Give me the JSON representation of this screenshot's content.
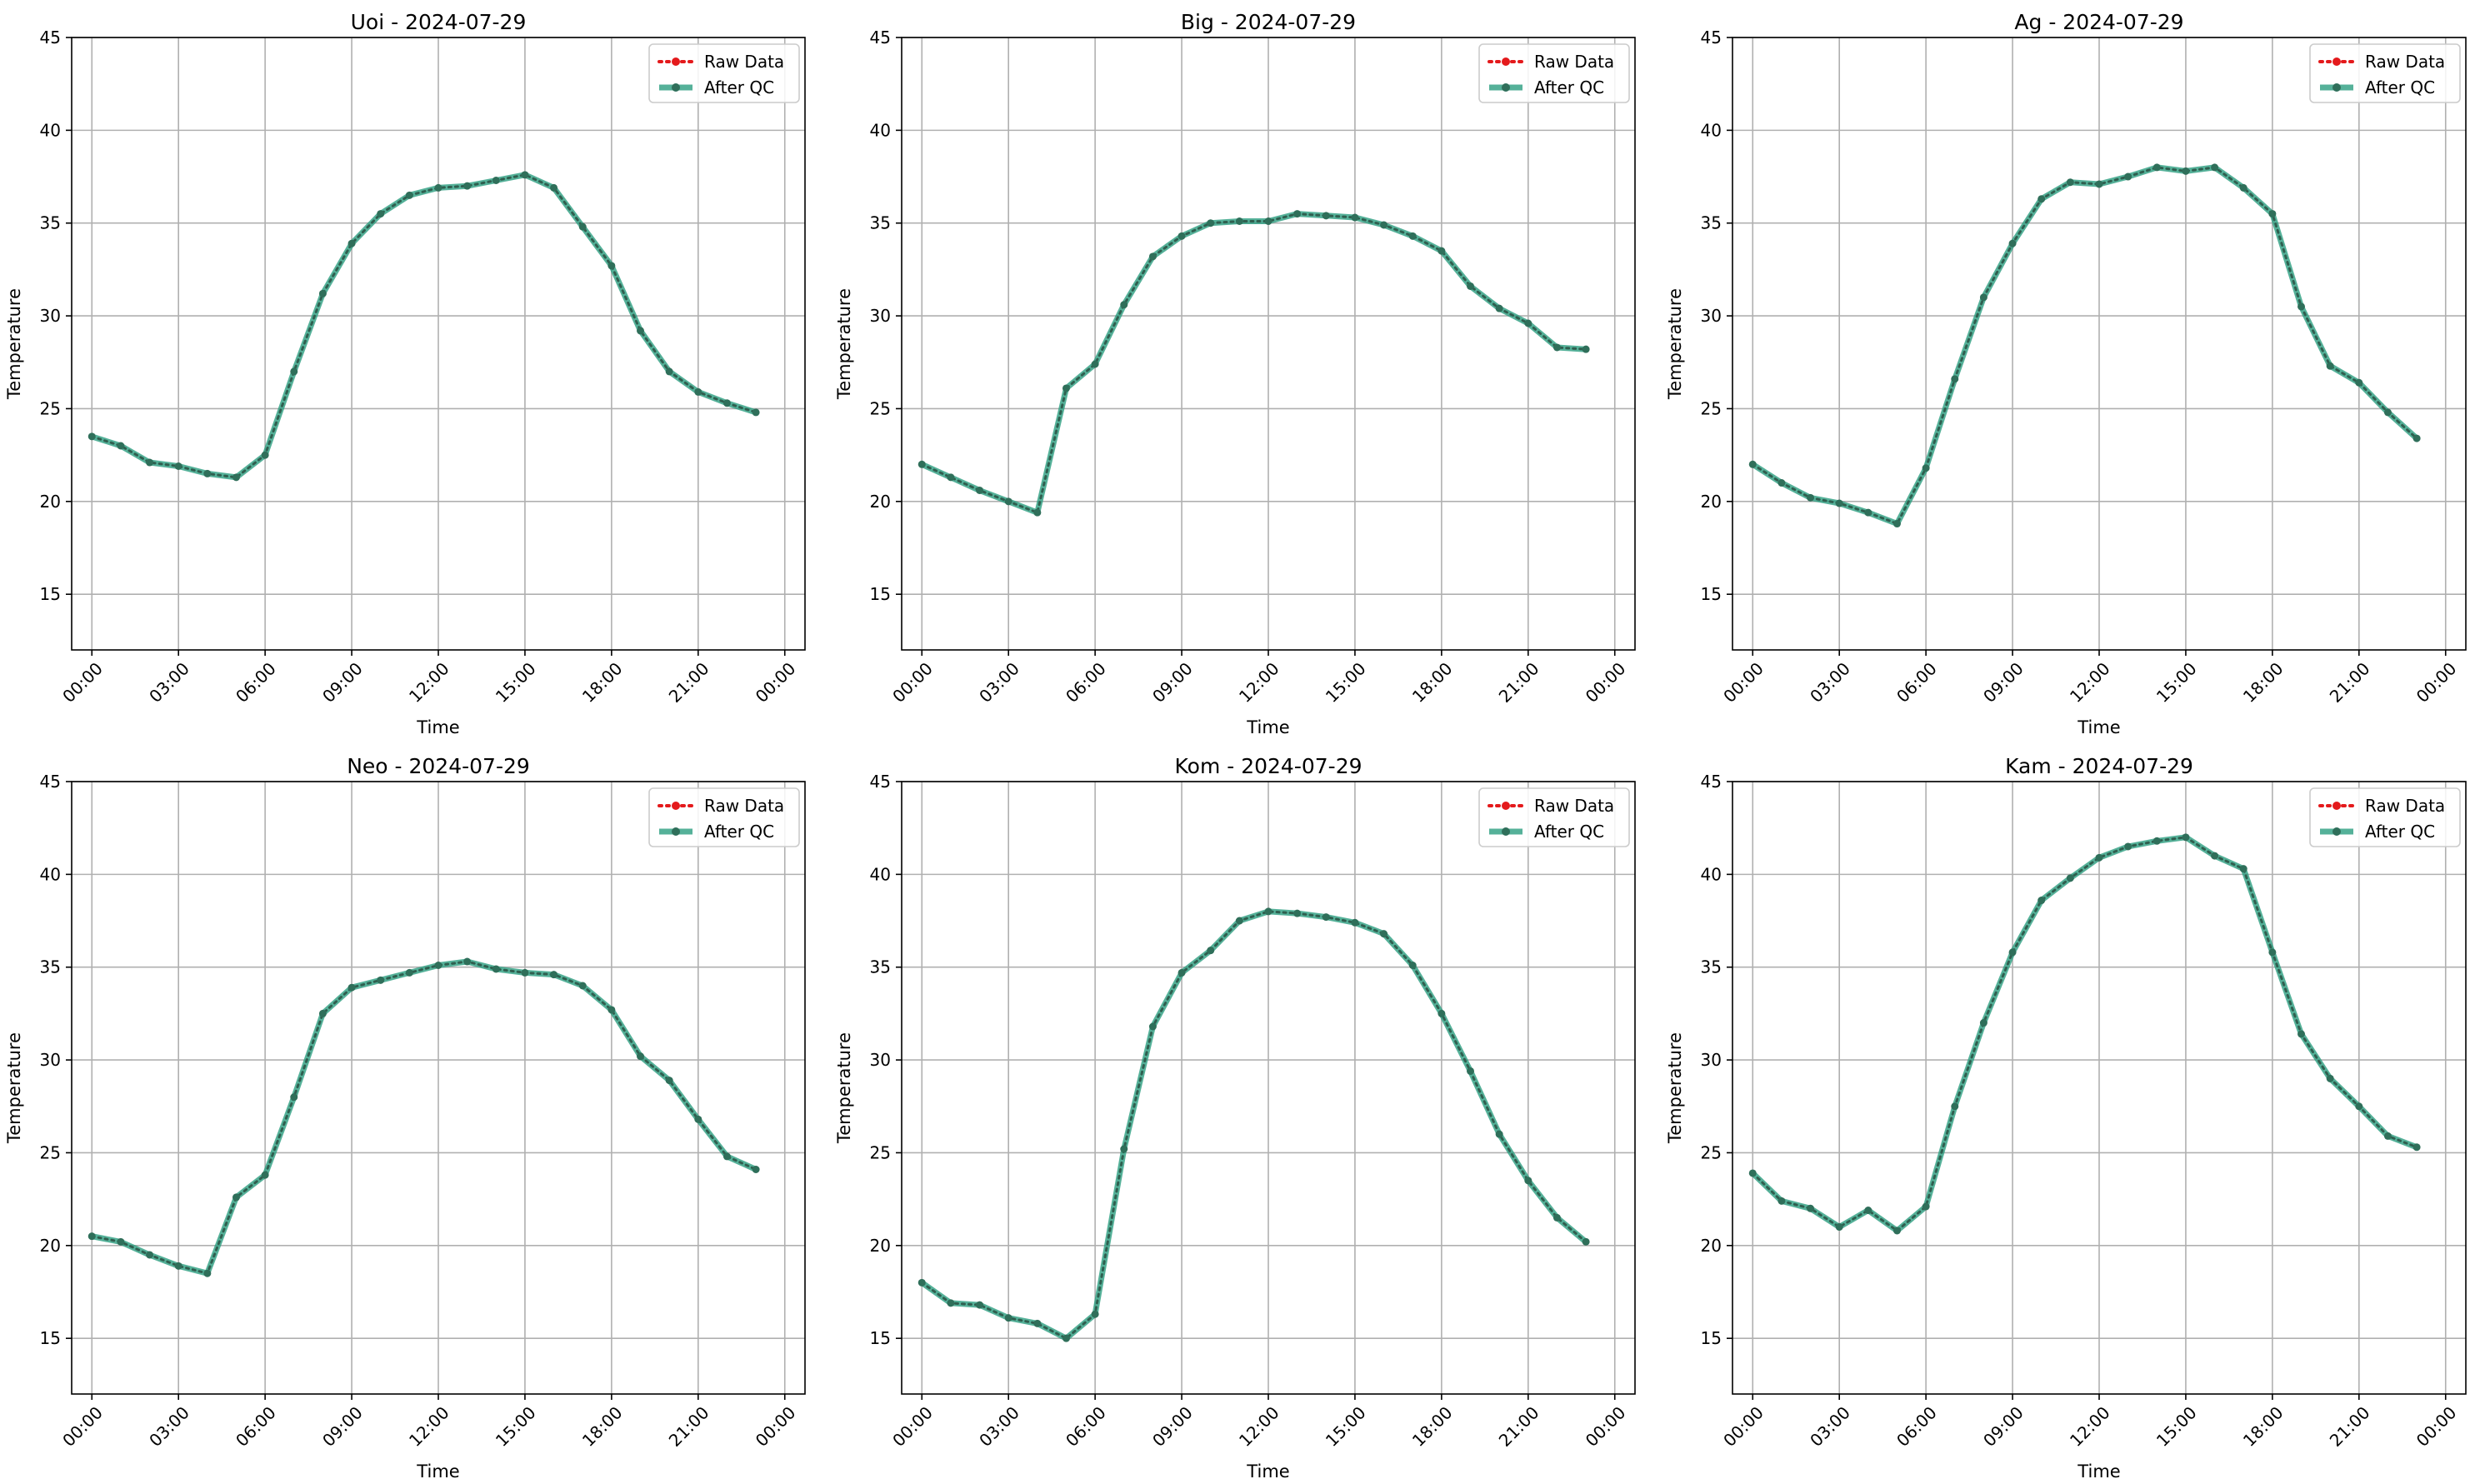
{
  "chart_data": [
    {
      "type": "line",
      "title": "Uoi - 2024-07-29",
      "xlabel": "Time",
      "ylabel": "Temperature",
      "ylim": [
        12,
        45
      ],
      "yticks": [
        15,
        20,
        25,
        30,
        35,
        40,
        45
      ],
      "xlim": [
        "2024-07-28 23:18",
        "2024-07-30 00:42"
      ],
      "xticks": [
        "00:00",
        "03:00",
        "06:00",
        "09:00",
        "12:00",
        "15:00",
        "18:00",
        "21:00",
        "00:00"
      ],
      "grid": true,
      "legend_position": "top-right",
      "x": [
        "00:00",
        "01:00",
        "02:00",
        "03:00",
        "04:00",
        "05:00",
        "06:00",
        "07:00",
        "08:00",
        "09:00",
        "10:00",
        "11:00",
        "12:00",
        "13:00",
        "14:00",
        "15:00",
        "16:00",
        "17:00",
        "18:00",
        "19:00",
        "20:00",
        "21:00",
        "22:00",
        "23:00"
      ],
      "series": [
        {
          "name": "Raw Data",
          "style": "dotted",
          "color": "#e41a1c",
          "values": [
            23.5,
            23.0,
            22.1,
            21.9,
            21.5,
            21.3,
            22.5,
            27.0,
            31.2,
            33.9,
            35.5,
            36.5,
            36.9,
            37.0,
            37.3,
            37.6,
            36.9,
            34.8,
            32.7,
            29.2,
            27.0,
            25.9,
            25.3,
            24.8
          ]
        },
        {
          "name": "After QC",
          "style": "solid",
          "color": "#2a9d7f",
          "values": [
            23.5,
            23.0,
            22.1,
            21.9,
            21.5,
            21.3,
            22.5,
            27.0,
            31.2,
            33.9,
            35.5,
            36.5,
            36.9,
            37.0,
            37.3,
            37.6,
            36.9,
            34.8,
            32.7,
            29.2,
            27.0,
            25.9,
            25.3,
            24.8
          ]
        }
      ]
    },
    {
      "type": "line",
      "title": "Big - 2024-07-29",
      "xlabel": "Time",
      "ylabel": "Temperature",
      "ylim": [
        12,
        45
      ],
      "yticks": [
        15,
        20,
        25,
        30,
        35,
        40,
        45
      ],
      "xlim": [
        "2024-07-28 23:18",
        "2024-07-30 00:42"
      ],
      "xticks": [
        "00:00",
        "03:00",
        "06:00",
        "09:00",
        "12:00",
        "15:00",
        "18:00",
        "21:00",
        "00:00"
      ],
      "grid": true,
      "legend_position": "top-right",
      "x": [
        "00:00",
        "01:00",
        "02:00",
        "03:00",
        "04:00",
        "05:00",
        "06:00",
        "07:00",
        "08:00",
        "09:00",
        "10:00",
        "11:00",
        "12:00",
        "13:00",
        "14:00",
        "15:00",
        "16:00",
        "17:00",
        "18:00",
        "19:00",
        "20:00",
        "21:00",
        "22:00",
        "23:00"
      ],
      "series": [
        {
          "name": "Raw Data",
          "style": "dotted",
          "color": "#e41a1c",
          "values": [
            22.0,
            21.3,
            20.6,
            20.0,
            19.4,
            26.1,
            27.4,
            30.6,
            33.2,
            34.3,
            35.0,
            35.1,
            35.1,
            35.5,
            35.4,
            35.3,
            34.9,
            34.3,
            33.5,
            31.6,
            30.4,
            29.6,
            28.3,
            28.2
          ]
        },
        {
          "name": "After QC",
          "style": "solid",
          "color": "#2a9d7f",
          "values": [
            22.0,
            21.3,
            20.6,
            20.0,
            19.4,
            26.1,
            27.4,
            30.6,
            33.2,
            34.3,
            35.0,
            35.1,
            35.1,
            35.5,
            35.4,
            35.3,
            34.9,
            34.3,
            33.5,
            31.6,
            30.4,
            29.6,
            28.3,
            28.2
          ]
        }
      ]
    },
    {
      "type": "line",
      "title": "Ag - 2024-07-29",
      "xlabel": "Time",
      "ylabel": "Temperature",
      "ylim": [
        12,
        45
      ],
      "yticks": [
        15,
        20,
        25,
        30,
        35,
        40,
        45
      ],
      "xlim": [
        "2024-07-28 23:18",
        "2024-07-30 00:42"
      ],
      "xticks": [
        "00:00",
        "03:00",
        "06:00",
        "09:00",
        "12:00",
        "15:00",
        "18:00",
        "21:00",
        "00:00"
      ],
      "grid": true,
      "legend_position": "top-right",
      "x": [
        "00:00",
        "01:00",
        "02:00",
        "03:00",
        "04:00",
        "05:00",
        "06:00",
        "07:00",
        "08:00",
        "09:00",
        "10:00",
        "11:00",
        "12:00",
        "13:00",
        "14:00",
        "15:00",
        "16:00",
        "17:00",
        "18:00",
        "19:00",
        "20:00",
        "21:00",
        "22:00",
        "23:00"
      ],
      "series": [
        {
          "name": "Raw Data",
          "style": "dotted",
          "color": "#e41a1c",
          "values": [
            22.0,
            21.0,
            20.2,
            19.9,
            19.4,
            18.8,
            21.8,
            26.6,
            31.0,
            33.9,
            36.3,
            37.2,
            37.1,
            37.5,
            38.0,
            37.8,
            38.0,
            36.9,
            35.5,
            30.5,
            27.3,
            26.4,
            24.8,
            23.4
          ]
        },
        {
          "name": "After QC",
          "style": "solid",
          "color": "#2a9d7f",
          "values": [
            22.0,
            21.0,
            20.2,
            19.9,
            19.4,
            18.8,
            21.8,
            26.6,
            31.0,
            33.9,
            36.3,
            37.2,
            37.1,
            37.5,
            38.0,
            37.8,
            38.0,
            36.9,
            35.5,
            30.5,
            27.3,
            26.4,
            24.8,
            23.4
          ]
        }
      ]
    },
    {
      "type": "line",
      "title": "Neo - 2024-07-29",
      "xlabel": "Time",
      "ylabel": "Temperature",
      "ylim": [
        12,
        45
      ],
      "yticks": [
        15,
        20,
        25,
        30,
        35,
        40,
        45
      ],
      "xlim": [
        "2024-07-28 23:18",
        "2024-07-30 00:42"
      ],
      "xticks": [
        "00:00",
        "03:00",
        "06:00",
        "09:00",
        "12:00",
        "15:00",
        "18:00",
        "21:00",
        "00:00"
      ],
      "grid": true,
      "legend_position": "top-right",
      "x": [
        "00:00",
        "01:00",
        "02:00",
        "03:00",
        "04:00",
        "05:00",
        "06:00",
        "07:00",
        "08:00",
        "09:00",
        "10:00",
        "11:00",
        "12:00",
        "13:00",
        "14:00",
        "15:00",
        "16:00",
        "17:00",
        "18:00",
        "19:00",
        "20:00",
        "21:00",
        "22:00",
        "23:00"
      ],
      "series": [
        {
          "name": "Raw Data",
          "style": "dotted",
          "color": "#e41a1c",
          "values": [
            20.5,
            20.2,
            19.5,
            18.9,
            18.5,
            22.6,
            23.8,
            28.0,
            32.5,
            33.9,
            34.3,
            34.7,
            35.1,
            35.3,
            34.9,
            34.7,
            34.6,
            34.0,
            32.7,
            30.2,
            28.9,
            26.8,
            24.8,
            24.1
          ]
        },
        {
          "name": "After QC",
          "style": "solid",
          "color": "#2a9d7f",
          "values": [
            20.5,
            20.2,
            19.5,
            18.9,
            18.5,
            22.6,
            23.8,
            28.0,
            32.5,
            33.9,
            34.3,
            34.7,
            35.1,
            35.3,
            34.9,
            34.7,
            34.6,
            34.0,
            32.7,
            30.2,
            28.9,
            26.8,
            24.8,
            24.1
          ]
        }
      ]
    },
    {
      "type": "line",
      "title": "Kom - 2024-07-29",
      "xlabel": "Time",
      "ylabel": "Temperature",
      "ylim": [
        12,
        45
      ],
      "yticks": [
        15,
        20,
        25,
        30,
        35,
        40,
        45
      ],
      "xlim": [
        "2024-07-28 23:18",
        "2024-07-30 00:42"
      ],
      "xticks": [
        "00:00",
        "03:00",
        "06:00",
        "09:00",
        "12:00",
        "15:00",
        "18:00",
        "21:00",
        "00:00"
      ],
      "grid": true,
      "legend_position": "top-right",
      "x": [
        "00:00",
        "01:00",
        "02:00",
        "03:00",
        "04:00",
        "05:00",
        "06:00",
        "07:00",
        "08:00",
        "09:00",
        "10:00",
        "11:00",
        "12:00",
        "13:00",
        "14:00",
        "15:00",
        "16:00",
        "17:00",
        "18:00",
        "19:00",
        "20:00",
        "21:00",
        "22:00",
        "23:00"
      ],
      "series": [
        {
          "name": "Raw Data",
          "style": "dotted",
          "color": "#e41a1c",
          "values": [
            18.0,
            16.9,
            16.8,
            16.1,
            15.8,
            15.0,
            16.3,
            25.2,
            31.8,
            34.7,
            35.9,
            37.5,
            38.0,
            37.9,
            37.7,
            37.4,
            36.8,
            35.1,
            32.5,
            29.4,
            26.0,
            23.5,
            21.5,
            20.2
          ]
        },
        {
          "name": "After QC",
          "style": "solid",
          "color": "#2a9d7f",
          "values": [
            18.0,
            16.9,
            16.8,
            16.1,
            15.8,
            15.0,
            16.3,
            25.2,
            31.8,
            34.7,
            35.9,
            37.5,
            38.0,
            37.9,
            37.7,
            37.4,
            36.8,
            35.1,
            32.5,
            29.4,
            26.0,
            23.5,
            21.5,
            20.2
          ]
        }
      ]
    },
    {
      "type": "line",
      "title": "Kam - 2024-07-29",
      "xlabel": "Time",
      "ylabel": "Temperature",
      "ylim": [
        12,
        45
      ],
      "yticks": [
        15,
        20,
        25,
        30,
        35,
        40,
        45
      ],
      "xlim": [
        "2024-07-28 23:18",
        "2024-07-30 00:42"
      ],
      "xticks": [
        "00:00",
        "03:00",
        "06:00",
        "09:00",
        "12:00",
        "15:00",
        "18:00",
        "21:00",
        "00:00"
      ],
      "grid": true,
      "legend_position": "top-right",
      "x": [
        "00:00",
        "01:00",
        "02:00",
        "03:00",
        "04:00",
        "05:00",
        "06:00",
        "07:00",
        "08:00",
        "09:00",
        "10:00",
        "11:00",
        "12:00",
        "13:00",
        "14:00",
        "15:00",
        "16:00",
        "17:00",
        "18:00",
        "19:00",
        "20:00",
        "21:00",
        "22:00",
        "23:00"
      ],
      "series": [
        {
          "name": "Raw Data",
          "style": "dotted",
          "color": "#e41a1c",
          "values": [
            23.9,
            22.4,
            22.0,
            21.0,
            21.9,
            20.8,
            22.1,
            27.5,
            32.0,
            35.8,
            38.6,
            39.8,
            40.9,
            41.5,
            41.8,
            42.0,
            41.0,
            40.3,
            35.8,
            31.4,
            29.0,
            27.5,
            25.9,
            25.3
          ]
        },
        {
          "name": "After QC",
          "style": "solid",
          "color": "#2a9d7f",
          "values": [
            23.9,
            22.4,
            22.0,
            21.0,
            21.9,
            20.8,
            22.1,
            27.5,
            32.0,
            35.8,
            38.6,
            39.8,
            40.9,
            41.5,
            41.8,
            42.0,
            41.0,
            40.3,
            35.8,
            31.4,
            29.0,
            27.5,
            25.9,
            25.3
          ]
        }
      ]
    }
  ]
}
